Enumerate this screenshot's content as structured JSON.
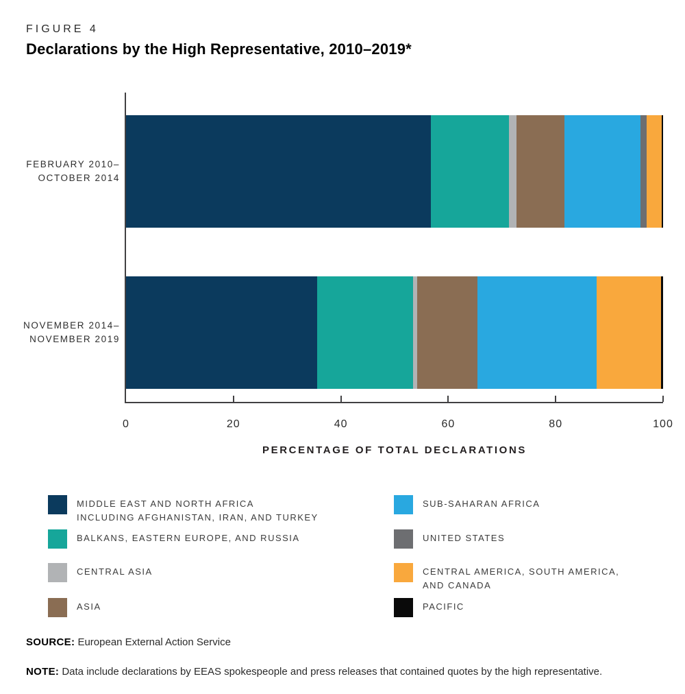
{
  "figure": {
    "label": "FIGURE 4",
    "title": "Declarations by the High Representative, 2010–2019*"
  },
  "chart_data": {
    "type": "bar",
    "orientation": "horizontal",
    "stacked": true,
    "title": "Declarations by the High Representative, 2010–2019*",
    "categories": [
      "FEBRUARY 2010–OCTOBER 2014",
      "NOVEMBER 2014–NOVEMBER 2019"
    ],
    "category_lines": [
      [
        "FEBRUARY 2010–",
        "OCTOBER 2014"
      ],
      [
        "NOVEMBER 2014–",
        "NOVEMBER 2019"
      ]
    ],
    "series": [
      {
        "name": "MIDDLE EAST AND NORTH AFRICA INCLUDING AFGHANISTAN, IRAN, AND TURKEY",
        "color": "#0b3a5d",
        "values": [
          56.8,
          35.6
        ]
      },
      {
        "name": "BALKANS, EASTERN EUROPE, AND RUSSIA",
        "color": "#16a69a",
        "values": [
          14.5,
          17.8
        ]
      },
      {
        "name": "CENTRAL ASIA",
        "color": "#b1b3b5",
        "values": [
          1.4,
          0.8
        ]
      },
      {
        "name": "ASIA",
        "color": "#8a6d53",
        "values": [
          8.9,
          11.2
        ]
      },
      {
        "name": "SUB-SAHARAN AFRICA",
        "color": "#29a8e0",
        "values": [
          14.2,
          22.2
        ]
      },
      {
        "name": "UNITED STATES",
        "color": "#6d6e71",
        "values": [
          1.2,
          0
        ]
      },
      {
        "name": "CENTRAL AMERICA, SOUTH AMERICA, AND CANADA",
        "color": "#f9a83d",
        "values": [
          2.8,
          12.0
        ]
      },
      {
        "name": "PACIFIC",
        "color": "#0a0a0a",
        "values": [
          0.2,
          0.4
        ]
      }
    ],
    "xlabel": "PERCENTAGE OF TOTAL DECLARATIONS",
    "xlim": [
      0,
      100
    ],
    "xticks": [
      0,
      20,
      40,
      60,
      80,
      100
    ],
    "grid": false,
    "legend_position": "bottom-two-columns"
  },
  "legend": {
    "columns": [
      [
        {
          "lines": [
            "MIDDLE EAST AND NORTH AFRICA",
            "INCLUDING AFGHANISTAN, IRAN, AND TURKEY"
          ],
          "color": "#0b3a5d"
        },
        {
          "lines": [
            "BALKANS, EASTERN EUROPE, AND RUSSIA"
          ],
          "color": "#16a69a"
        },
        {
          "lines": [
            "CENTRAL ASIA"
          ],
          "color": "#b1b3b5"
        },
        {
          "lines": [
            "ASIA"
          ],
          "color": "#8a6d53"
        }
      ],
      [
        {
          "lines": [
            "SUB-SAHARAN AFRICA"
          ],
          "color": "#29a8e0"
        },
        {
          "lines": [
            "UNITED STATES"
          ],
          "color": "#6d6e71"
        },
        {
          "lines": [
            "CENTRAL AMERICA, SOUTH AMERICA,",
            "AND CANADA"
          ],
          "color": "#f9a83d"
        },
        {
          "lines": [
            "PACIFIC"
          ],
          "color": "#0a0a0a"
        }
      ]
    ]
  },
  "source": {
    "label": "SOURCE:",
    "text": "European External Action Service"
  },
  "note": {
    "label": "NOTE:",
    "text": "Data include declarations by EEAS spokespeople and press releases that contained quotes by the high representative."
  }
}
